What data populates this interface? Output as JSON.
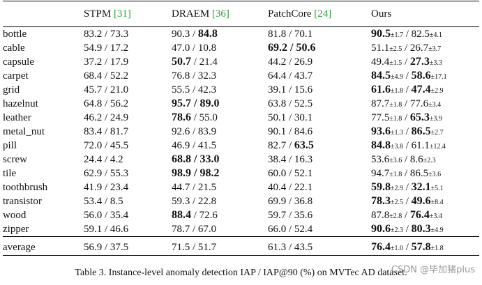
{
  "table": {
    "columns": [
      {
        "name": "",
        "ref": ""
      },
      {
        "name": "STPM ",
        "ref": "[31]"
      },
      {
        "name": "DRAEM ",
        "ref": "[36]"
      },
      {
        "name": "PatchCore ",
        "ref": "[24]"
      },
      {
        "name": "Ours",
        "ref": ""
      }
    ],
    "rows": [
      {
        "name": "bottle",
        "cells": [
          [
            {
              "t": "83.2 / 73.3"
            }
          ],
          [
            {
              "t": "90.3 / "
            },
            {
              "t": "84.8",
              "b": true
            }
          ],
          [
            {
              "t": "81.8 / 70.1"
            }
          ],
          [
            {
              "t": "90.5",
              "b": true
            },
            {
              "t": "±1.7",
              "s": true
            },
            {
              "t": " / 82.5"
            },
            {
              "t": "±4.1",
              "s": true
            }
          ]
        ]
      },
      {
        "name": "cable",
        "cells": [
          [
            {
              "t": "54.9 / 17.2"
            }
          ],
          [
            {
              "t": "47.0 / 10.8"
            }
          ],
          [
            {
              "t": "69.2 / 50.6",
              "b": true
            }
          ],
          [
            {
              "t": "51.1"
            },
            {
              "t": "±2.5",
              "s": true
            },
            {
              "t": " / 26.7"
            },
            {
              "t": "±3.7",
              "s": true
            }
          ]
        ]
      },
      {
        "name": "capsule",
        "cells": [
          [
            {
              "t": "37.2 / 17.9"
            }
          ],
          [
            {
              "t": "50.7",
              "b": true
            },
            {
              "t": " / 21.4"
            }
          ],
          [
            {
              "t": "44.2 / 26.9"
            }
          ],
          [
            {
              "t": "49.4"
            },
            {
              "t": "±1.5",
              "s": true
            },
            {
              "t": " / "
            },
            {
              "t": "27.3",
              "b": true
            },
            {
              "t": "±3.3",
              "s": true
            }
          ]
        ]
      },
      {
        "name": "carpet",
        "cells": [
          [
            {
              "t": "68.4 / 52.2"
            }
          ],
          [
            {
              "t": "76.8 / 32.3"
            }
          ],
          [
            {
              "t": "64.4 / 43.7"
            }
          ],
          [
            {
              "t": "84.5",
              "b": true
            },
            {
              "t": "±4.9",
              "s": true
            },
            {
              "t": " / "
            },
            {
              "t": "58.6",
              "b": true
            },
            {
              "t": "±17.1",
              "s": true
            }
          ]
        ]
      },
      {
        "name": "grid",
        "cells": [
          [
            {
              "t": "45.7 / 21.0"
            }
          ],
          [
            {
              "t": "55.5 / 42.3"
            }
          ],
          [
            {
              "t": "39.1 / 15.6"
            }
          ],
          [
            {
              "t": "61.6",
              "b": true
            },
            {
              "t": "±1.8",
              "s": true
            },
            {
              "t": " / "
            },
            {
              "t": "47.4",
              "b": true
            },
            {
              "t": "±2.9",
              "s": true
            }
          ]
        ]
      },
      {
        "name": "hazelnut",
        "cells": [
          [
            {
              "t": "64.8 / 56.2"
            }
          ],
          [
            {
              "t": "95.7 / 89.0",
              "b": true
            }
          ],
          [
            {
              "t": "63.8 / 52.5"
            }
          ],
          [
            {
              "t": "87.7"
            },
            {
              "t": "±1.8",
              "s": true
            },
            {
              "t": " / 77.6"
            },
            {
              "t": "±3.4",
              "s": true
            }
          ]
        ]
      },
      {
        "name": "leather",
        "cells": [
          [
            {
              "t": "46.2 / 24.9"
            }
          ],
          [
            {
              "t": "78.6",
              "b": true
            },
            {
              "t": " / 55.0"
            }
          ],
          [
            {
              "t": "50.1 / 30.1"
            }
          ],
          [
            {
              "t": "77.5"
            },
            {
              "t": "±1.8",
              "s": true
            },
            {
              "t": " / "
            },
            {
              "t": "65.3",
              "b": true
            },
            {
              "t": "±3.9",
              "s": true
            }
          ]
        ]
      },
      {
        "name": "metal_nut",
        "cells": [
          [
            {
              "t": "83.4 / 81.7"
            }
          ],
          [
            {
              "t": "92.6 / 83.9"
            }
          ],
          [
            {
              "t": "90.1 / 84.6"
            }
          ],
          [
            {
              "t": "93.6",
              "b": true
            },
            {
              "t": "±1.3",
              "s": true
            },
            {
              "t": " / "
            },
            {
              "t": "86.5",
              "b": true
            },
            {
              "t": "±2.7",
              "s": true
            }
          ]
        ]
      },
      {
        "name": "pill",
        "cells": [
          [
            {
              "t": "72.0 / 45.5"
            }
          ],
          [
            {
              "t": "46.9 / 41.5"
            }
          ],
          [
            {
              "t": "82.7 / "
            },
            {
              "t": "63.5",
              "b": true
            }
          ],
          [
            {
              "t": "84.8",
              "b": true
            },
            {
              "t": "±3.8",
              "s": true
            },
            {
              "t": " / 61.1"
            },
            {
              "t": "±12.4",
              "s": true
            }
          ]
        ]
      },
      {
        "name": "screw",
        "cells": [
          [
            {
              "t": "24.4 / 4.2"
            }
          ],
          [
            {
              "t": "68.8 / 33.0",
              "b": true
            }
          ],
          [
            {
              "t": "38.4 / 16.3"
            }
          ],
          [
            {
              "t": "53.6"
            },
            {
              "t": "±3.6",
              "s": true
            },
            {
              "t": " / 8.6"
            },
            {
              "t": "±2.3",
              "s": true
            }
          ]
        ]
      },
      {
        "name": "tile",
        "cells": [
          [
            {
              "t": "62.9 / 55.3"
            }
          ],
          [
            {
              "t": "98.9 / 98.2",
              "b": true
            }
          ],
          [
            {
              "t": "60.0 / 52.1"
            }
          ],
          [
            {
              "t": "94.7"
            },
            {
              "t": "±1.8",
              "s": true
            },
            {
              "t": " / 86.5"
            },
            {
              "t": "±3.6",
              "s": true
            }
          ]
        ]
      },
      {
        "name": "toothbrush",
        "cells": [
          [
            {
              "t": "41.9 / 23.4"
            }
          ],
          [
            {
              "t": "44.7 / 21.5"
            }
          ],
          [
            {
              "t": "40.4 / 22.1"
            }
          ],
          [
            {
              "t": "59.8",
              "b": true
            },
            {
              "t": "±2.9",
              "s": true
            },
            {
              "t": " / "
            },
            {
              "t": "32.1",
              "b": true
            },
            {
              "t": "±5.1",
              "s": true
            }
          ]
        ]
      },
      {
        "name": "transistor",
        "cells": [
          [
            {
              "t": "53.4 / 8.5"
            }
          ],
          [
            {
              "t": "59.3 / 22.8"
            }
          ],
          [
            {
              "t": "69.9 / 36.8"
            }
          ],
          [
            {
              "t": "78.3",
              "b": true
            },
            {
              "t": "±2.5",
              "s": true
            },
            {
              "t": " / "
            },
            {
              "t": "49.6",
              "b": true
            },
            {
              "t": "±8.4",
              "s": true
            }
          ]
        ]
      },
      {
        "name": "wood",
        "cells": [
          [
            {
              "t": "56.0 / 35.4"
            }
          ],
          [
            {
              "t": "88.4",
              "b": true
            },
            {
              "t": " / 72.6"
            }
          ],
          [
            {
              "t": "59.7 / 35.6"
            }
          ],
          [
            {
              "t": "87.8"
            },
            {
              "t": "±2.8",
              "s": true
            },
            {
              "t": " / "
            },
            {
              "t": "76.4",
              "b": true
            },
            {
              "t": "±3.4",
              "s": true
            }
          ]
        ]
      },
      {
        "name": "zipper",
        "cells": [
          [
            {
              "t": "59.1 / 46.6"
            }
          ],
          [
            {
              "t": "78.7 / 67.0"
            }
          ],
          [
            {
              "t": "66.0 / 52.4"
            }
          ],
          [
            {
              "t": "90.6",
              "b": true
            },
            {
              "t": "±2.3",
              "s": true
            },
            {
              "t": " / "
            },
            {
              "t": "80.3",
              "b": true
            },
            {
              "t": "±4.9",
              "s": true
            }
          ]
        ]
      }
    ],
    "average": {
      "name": "average",
      "cells": [
        [
          {
            "t": "56.9 / 37.5"
          }
        ],
        [
          {
            "t": "71.5 / 51.7"
          }
        ],
        [
          {
            "t": "61.3 / 43.5"
          }
        ],
        [
          {
            "t": "76.4",
            "b": true
          },
          {
            "t": "±1.0",
            "s": true
          },
          {
            "t": " / "
          },
          {
            "t": "57.8",
            "b": true
          },
          {
            "t": "±1.8",
            "s": true
          }
        ]
      ]
    }
  },
  "caption": "Table 3. Instance-level anomaly detection IAP / IAP@90 (%) on MVTec AD dataset.",
  "watermark": "CSDN @毕加猪plus",
  "colors": {
    "citation": "#2e9b3a",
    "watermark": "#9a9a9a"
  }
}
